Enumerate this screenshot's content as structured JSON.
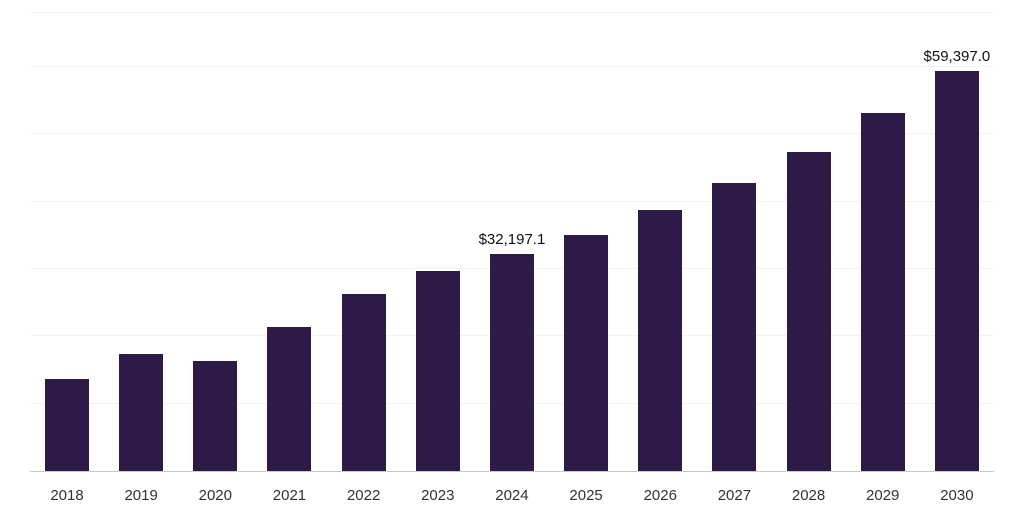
{
  "chart_data": {
    "type": "bar",
    "categories": [
      "2018",
      "2019",
      "2020",
      "2021",
      "2022",
      "2023",
      "2024",
      "2025",
      "2026",
      "2027",
      "2028",
      "2029",
      "2030"
    ],
    "values": [
      13700,
      17300,
      16400,
      21400,
      26300,
      29700,
      32197.1,
      35000,
      38700,
      42700,
      47300,
      53200,
      59397.0
    ],
    "data_labels": [
      "",
      "",
      "",
      "",
      "",
      "",
      "$32,197.1",
      "",
      "",
      "",
      "",
      "",
      "$59,397.0"
    ],
    "title": "",
    "xlabel": "",
    "ylabel": "",
    "ylim": [
      0,
      68000
    ],
    "grid_interval": 10000,
    "grid": true,
    "legend_position": "none",
    "bar_color": "#2e1a47",
    "gridline_color": "#f2f2f2",
    "axis_line_color": "#c9c9c9",
    "data_label_color": "#111111",
    "tick_label_color": "#333333"
  }
}
